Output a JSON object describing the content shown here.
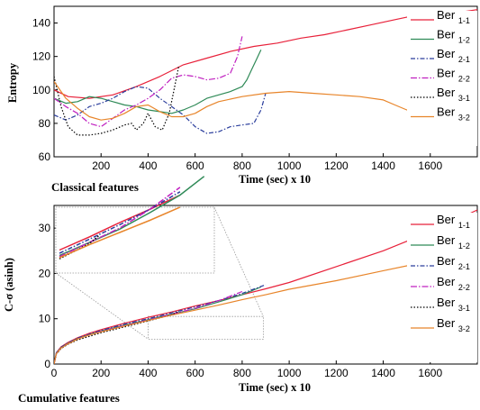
{
  "chart_data": [
    {
      "type": "line",
      "caption": "Classical features",
      "xlabel": "Time (sec) x 10",
      "ylabel": "Entropy",
      "xlim": [
        0,
        1800
      ],
      "ylim": [
        60,
        150
      ],
      "xticks": [
        200,
        400,
        600,
        800,
        1000,
        1200,
        1400,
        1600
      ],
      "yticks": [
        60,
        80,
        100,
        120,
        140
      ],
      "grid": false,
      "legend_position": "right",
      "series": [
        {
          "name": "Ber",
          "sub": "1-1",
          "color": "#e8213a",
          "dash": "",
          "x": [
            0,
            60,
            150,
            250,
            350,
            450,
            550,
            650,
            750,
            850,
            950,
            1050,
            1150,
            1250,
            1350,
            1450,
            1550,
            1650,
            1750,
            1800
          ],
          "y": [
            100,
            96,
            95,
            97,
            102,
            108,
            115,
            119,
            123,
            126,
            128,
            131,
            133,
            136,
            139,
            142,
            145,
            146,
            147,
            148
          ]
        },
        {
          "name": "Ber",
          "sub": "1-2",
          "color": "#2f8a57",
          "dash": "",
          "x": [
            0,
            50,
            100,
            150,
            200,
            250,
            300,
            350,
            400,
            450,
            500,
            550,
            600,
            650,
            700,
            750,
            800,
            820,
            840,
            860,
            880
          ],
          "y": [
            95,
            92,
            93,
            96,
            95,
            93,
            91,
            90,
            88,
            87,
            86,
            88,
            91,
            95,
            97,
            99,
            102,
            106,
            112,
            118,
            124
          ]
        },
        {
          "name": "Ber",
          "sub": "2-1",
          "color": "#2a3d9c",
          "dash": "5,2,1.5,2",
          "x": [
            0,
            50,
            100,
            150,
            200,
            250,
            300,
            350,
            400,
            450,
            500,
            550,
            600,
            650,
            700,
            750,
            800,
            850,
            880,
            900
          ],
          "y": [
            85,
            82,
            85,
            90,
            92,
            95,
            99,
            102,
            101,
            95,
            90,
            85,
            78,
            74,
            75,
            78,
            79,
            80,
            88,
            98
          ]
        },
        {
          "name": "Ber",
          "sub": "2-2",
          "color": "#c020c0",
          "dash": "7,2,1.5,2",
          "x": [
            0,
            50,
            100,
            150,
            200,
            250,
            300,
            350,
            400,
            450,
            500,
            550,
            600,
            650,
            700,
            750,
            780,
            800
          ],
          "y": [
            95,
            90,
            86,
            80,
            78,
            83,
            88,
            91,
            95,
            100,
            107,
            109,
            108,
            106,
            107,
            110,
            120,
            132
          ]
        },
        {
          "name": "Ber",
          "sub": "3-1",
          "color": "#000000",
          "dash": "1.5,2",
          "x": [
            0,
            30,
            60,
            100,
            150,
            200,
            250,
            300,
            330,
            350,
            380,
            400,
            430,
            460,
            490,
            510,
            530
          ],
          "y": [
            108,
            90,
            78,
            73,
            73,
            74,
            76,
            79,
            80,
            76,
            80,
            86,
            78,
            76,
            86,
            100,
            114
          ]
        },
        {
          "name": "Ber",
          "sub": "3-2",
          "color": "#e8852a",
          "dash": "",
          "x": [
            0,
            50,
            100,
            150,
            200,
            250,
            300,
            350,
            400,
            450,
            500,
            550,
            600,
            650,
            700,
            800,
            900,
            1000,
            1100,
            1200,
            1300,
            1400,
            1450,
            1500,
            1530
          ],
          "y": [
            105,
            95,
            89,
            84,
            82,
            83,
            86,
            90,
            91,
            87,
            84,
            84,
            86,
            90,
            93,
            96,
            98,
            99,
            98,
            97,
            96,
            94,
            91,
            88,
            88
          ]
        }
      ]
    },
    {
      "type": "line",
      "caption": "Cumulative features",
      "xlabel": "Time (sec) x 10",
      "ylabel": "C-σ (asinh)",
      "xlim": [
        0,
        1800
      ],
      "ylim": [
        0,
        35
      ],
      "xticks": [
        0,
        200,
        400,
        600,
        800,
        1000,
        1200,
        1400,
        1600
      ],
      "yticks": [
        0,
        10,
        20,
        30
      ],
      "grid": false,
      "legend_position": "right",
      "inset": {
        "type": "zoom",
        "source_x": [
          400,
          890
        ],
        "source_y": [
          5.5,
          10.5
        ]
      },
      "series": [
        {
          "name": "Ber",
          "sub": "1-1",
          "color": "#e8213a",
          "dash": "",
          "x": [
            0,
            10,
            30,
            60,
            100,
            150,
            200,
            300,
            400,
            500,
            600,
            700,
            800,
            900,
            1000,
            1200,
            1400,
            1600,
            1800
          ],
          "y": [
            0,
            2.5,
            3.8,
            4.8,
            5.8,
            6.8,
            7.6,
            9.0,
            10.3,
            11.5,
            12.8,
            14.0,
            15.3,
            16.6,
            18.0,
            21.5,
            25.0,
            29.2,
            34.0
          ]
        },
        {
          "name": "Ber",
          "sub": "1-2",
          "color": "#2f8a57",
          "dash": "",
          "x": [
            0,
            10,
            30,
            60,
            100,
            150,
            200,
            300,
            400,
            500,
            600,
            700,
            800,
            880
          ],
          "y": [
            0,
            2.4,
            3.6,
            4.6,
            5.6,
            6.5,
            7.3,
            8.6,
            9.8,
            11.0,
            12.2,
            13.7,
            15.3,
            17.0
          ]
        },
        {
          "name": "Ber",
          "sub": "2-1",
          "color": "#2a3d9c",
          "dash": "5,2,1.5,2",
          "x": [
            0,
            10,
            30,
            60,
            100,
            150,
            200,
            300,
            400,
            500,
            600,
            700,
            800,
            900
          ],
          "y": [
            0,
            2.5,
            3.7,
            4.7,
            5.7,
            6.6,
            7.4,
            8.8,
            10.0,
            11.3,
            12.6,
            14.0,
            15.6,
            17.5
          ]
        },
        {
          "name": "Ber",
          "sub": "2-2",
          "color": "#c020c0",
          "dash": "7,2,1.5,2",
          "x": [
            0,
            10,
            30,
            60,
            100,
            150,
            200,
            300,
            400,
            500,
            600,
            700,
            800
          ],
          "y": [
            0,
            2.3,
            3.5,
            4.5,
            5.5,
            6.4,
            7.2,
            8.5,
            9.7,
            11.0,
            12.3,
            14.0,
            16.0
          ]
        },
        {
          "name": "Ber",
          "sub": "3-1",
          "color": "#000000",
          "dash": "1.5,2",
          "x": [
            0,
            10,
            30,
            60,
            100,
            150,
            200,
            300,
            400,
            500,
            530
          ],
          "y": [
            0,
            2.2,
            3.4,
            4.4,
            5.3,
            6.1,
            6.9,
            8.2,
            9.5,
            10.9,
            11.6
          ]
        },
        {
          "name": "Ber",
          "sub": "3-2",
          "color": "#e8852a",
          "dash": "",
          "x": [
            0,
            10,
            30,
            60,
            100,
            150,
            200,
            300,
            400,
            500,
            600,
            700,
            800,
            900,
            1000,
            1200,
            1400,
            1530
          ],
          "y": [
            0,
            2.3,
            3.5,
            4.5,
            5.5,
            6.4,
            7.1,
            8.4,
            9.6,
            10.8,
            11.9,
            13.0,
            14.2,
            15.3,
            16.5,
            18.4,
            20.6,
            22.0
          ]
        }
      ]
    }
  ]
}
